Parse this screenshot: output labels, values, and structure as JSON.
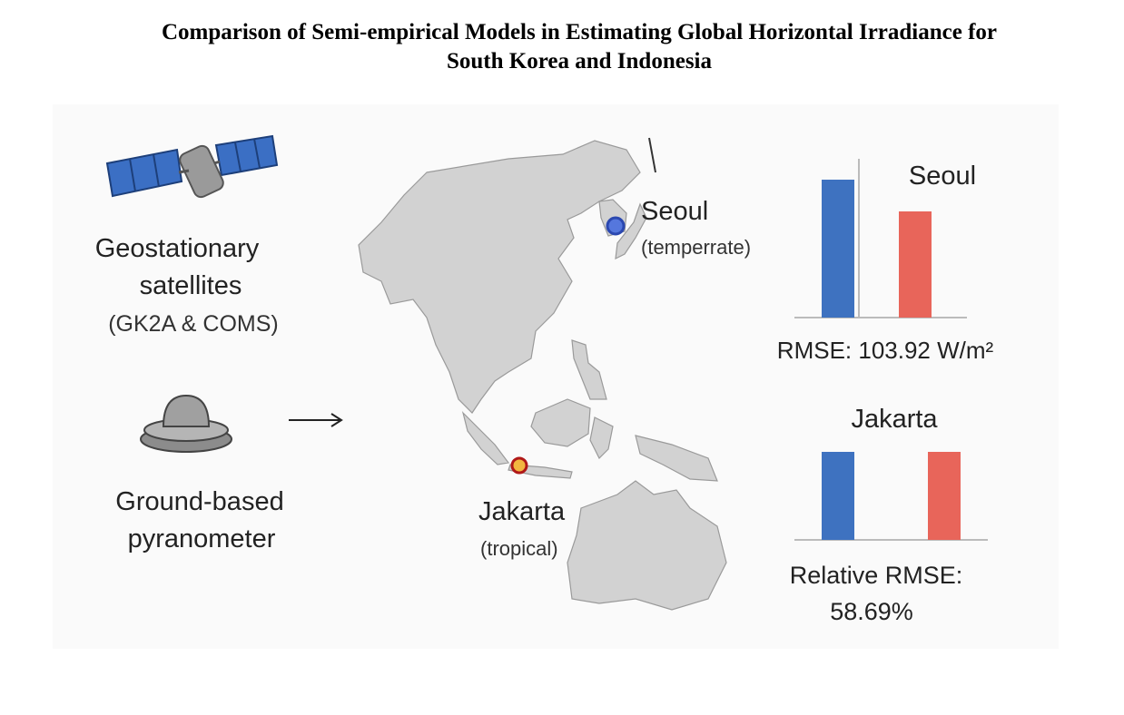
{
  "title": [
    "Comparison of Semi-empirical Models in Estimating Global Horizontal Irradiance for",
    "South Korea and Indonesia"
  ],
  "left": {
    "satellite": [
      "Geostationary",
      "satellites",
      "(GK2A & COMS)"
    ],
    "ground": [
      "Ground-based",
      "pyranometer"
    ]
  },
  "map": {
    "seoul": {
      "name": "Seoul",
      "climate": "(temperrate)"
    },
    "jakarta": {
      "name": "Jakarta",
      "climate": "(tropical)"
    }
  },
  "results": {
    "seoul": {
      "title": "Seoul",
      "metric": "RMSE: 103.92 W/m²"
    },
    "jakarta": {
      "title": "Jakarta",
      "metric": [
        "Relative RMSE:",
        "58.69%"
      ]
    }
  }
}
